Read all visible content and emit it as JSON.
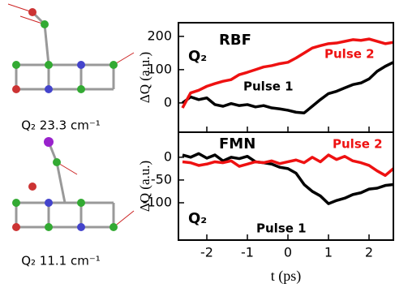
{
  "chart_data": [
    {
      "type": "line",
      "ylabel": "ΔQ (a.u.)",
      "x": [
        -2.6,
        -2.4,
        -2.2,
        -2,
        -1.8,
        -1.6,
        -1.4,
        -1.2,
        -1,
        -0.8,
        -0.6,
        -0.4,
        -0.2,
        0,
        0.2,
        0.4,
        0.6,
        0.8,
        1,
        1.2,
        1.4,
        1.6,
        1.8,
        2,
        2.2,
        2.4,
        2.6
      ],
      "series": [
        {
          "name": "Pulse 1",
          "color": "#000000",
          "values": [
            0,
            18,
            10,
            15,
            -5,
            -10,
            -2,
            -8,
            -5,
            -12,
            -8,
            -15,
            -18,
            -22,
            -28,
            -30,
            -10,
            10,
            28,
            35,
            45,
            55,
            60,
            72,
            95,
            110,
            122
          ]
        },
        {
          "name": "Pulse 2",
          "color": "#ee1111",
          "values": [
            -15,
            30,
            38,
            50,
            58,
            65,
            70,
            85,
            92,
            100,
            108,
            112,
            118,
            122,
            135,
            150,
            165,
            172,
            178,
            180,
            185,
            190,
            188,
            192,
            185,
            178,
            182
          ]
        }
      ],
      "annotations": [
        "RBF",
        "Q₂"
      ],
      "xlim": [
        -2.7,
        2.6
      ],
      "xticks": [
        -2,
        -1,
        0,
        1,
        2
      ],
      "ylim": [
        -88,
        241
      ],
      "yticks": [
        0,
        100,
        200
      ]
    },
    {
      "type": "line",
      "ylabel": "ΔQ (a.u.)",
      "xlabel": "t (ps)",
      "x": [
        -2.6,
        -2.4,
        -2.2,
        -2,
        -1.8,
        -1.6,
        -1.4,
        -1.2,
        -1,
        -0.8,
        -0.6,
        -0.4,
        -0.2,
        0,
        0.2,
        0.4,
        0.6,
        0.8,
        1,
        1.2,
        1.4,
        1.6,
        1.8,
        2,
        2.2,
        2.4,
        2.6
      ],
      "series": [
        {
          "name": "Pulse 1",
          "color": "#000000",
          "values": [
            5,
            0,
            8,
            -2,
            5,
            -8,
            0,
            -3,
            2,
            -10,
            -12,
            -15,
            -22,
            -25,
            -35,
            -60,
            -75,
            -85,
            -102,
            -95,
            -90,
            -82,
            -78,
            -70,
            -68,
            -62,
            -60
          ]
        },
        {
          "name": "Pulse 2",
          "color": "#ee1111",
          "values": [
            -10,
            -12,
            -18,
            -15,
            -10,
            -12,
            -8,
            -20,
            -15,
            -10,
            -12,
            -8,
            -14,
            -10,
            -6,
            -12,
            0,
            -10,
            5,
            -5,
            2,
            -8,
            -12,
            -18,
            -30,
            -40,
            -25
          ]
        }
      ],
      "annotations": [
        "FMN",
        "Q₂"
      ],
      "xlim": [
        -2.7,
        2.6
      ],
      "xticks": [
        -2,
        -1,
        0,
        1,
        2
      ],
      "ylim": [
        -182,
        55
      ],
      "yticks": [
        -100,
        -50,
        0
      ]
    }
  ],
  "molecules": [
    {
      "label": "Q₂ 23.3 cm⁻¹"
    },
    {
      "label": "Q₂ 11.1 cm⁻¹"
    }
  ]
}
